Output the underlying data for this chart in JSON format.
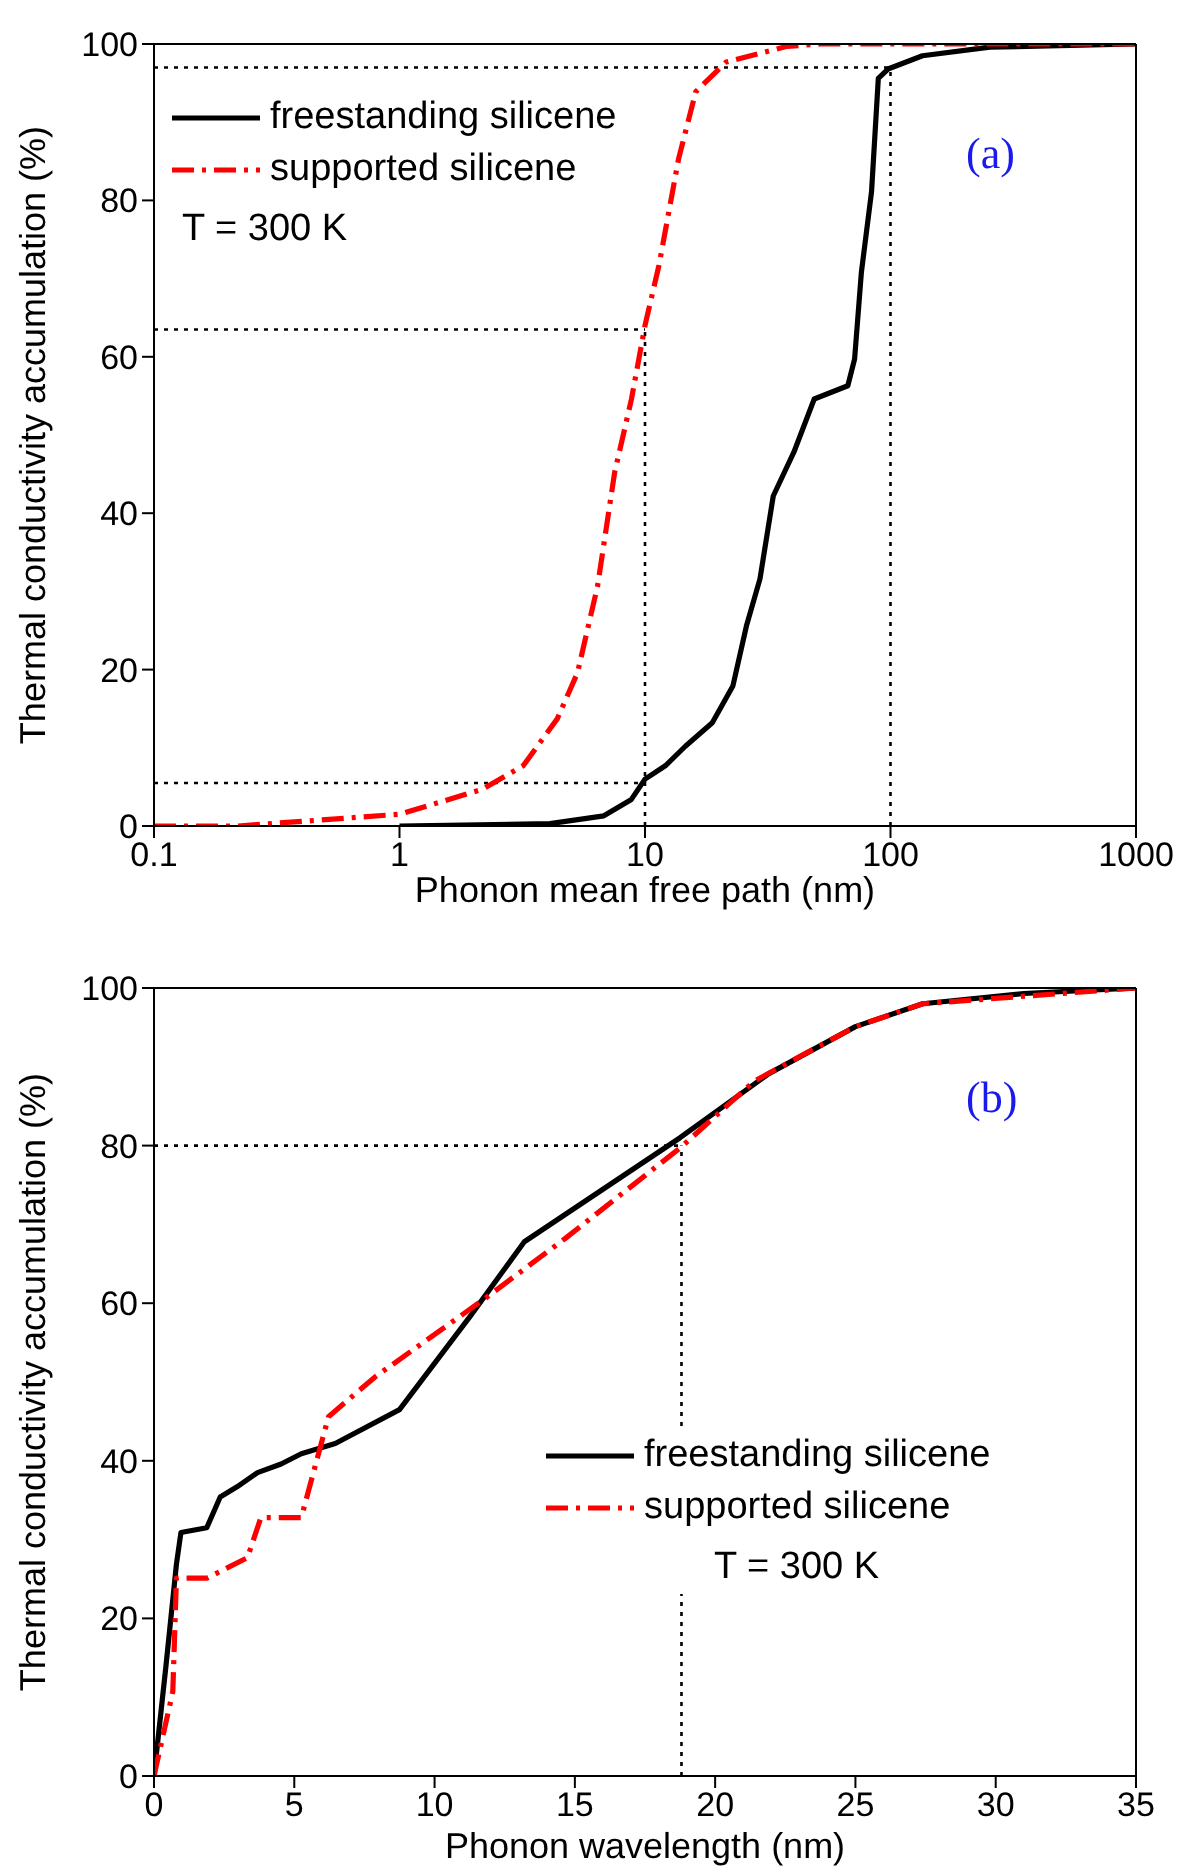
{
  "chart_data": [
    {
      "type": "line",
      "xlabel": "Phonon mean free path (nm)",
      "ylabel": "Thermal conductivity accumulation (%)",
      "log": "x",
      "xlim": [
        0.1,
        1000
      ],
      "xticks": [
        0.1,
        1,
        10,
        100,
        1000
      ],
      "ylim": [
        0,
        100
      ],
      "yticks": [
        0,
        20,
        40,
        60,
        80,
        100
      ],
      "legend": "top left",
      "marker": "none",
      "annotations": [
        "T = 300 K",
        "(a)"
      ],
      "ref_lines": [
        {
          "axis": "y",
          "value": 97,
          "line_style": "dotted",
          "color": "#000000"
        },
        {
          "axis": "y",
          "value": 63.5,
          "line_style": "dotted",
          "color": "#000000"
        },
        {
          "axis": "y",
          "value": 5.5,
          "line_style": "dotted",
          "color": "#000000"
        },
        {
          "axis": "x",
          "value": 10,
          "line_style": "dotted",
          "color": "#000000"
        },
        {
          "axis": "x",
          "value": 100,
          "line_style": "dotted",
          "color": "#000000"
        }
      ],
      "series": [
        {
          "name": "freestanding silicene",
          "color": "#000000",
          "line_style": "solid",
          "x": [
            1,
            4.1,
            6.8,
            8.8,
            10,
            12.1,
            14.6,
            18.8,
            22.8,
            25.9,
            29.4,
            33.3,
            40.4,
            48.9,
            67,
            71.4,
            76.1,
            83.7,
            89.2,
            97.7,
            135,
            254,
            1000
          ],
          "values": [
            0,
            0.3,
            1.3,
            3.4,
            6,
            7.7,
            10.2,
            13.2,
            17.9,
            25.6,
            31.6,
            42.2,
            47.8,
            54.6,
            56.3,
            59.7,
            70.8,
            81.1,
            95.6,
            96.8,
            98.5,
            99.6,
            100
          ]
        },
        {
          "name": "supported silicene",
          "color": "#ff0000",
          "line_style": "dashed",
          "x": [
            0.1,
            0.22,
            1,
            2.18,
            3.19,
            4.39,
            5.31,
            6.41,
            7.52,
            8.81,
            10,
            11.4,
            13.7,
            16.1,
            21.4,
            37.9,
            52,
            1000
          ],
          "values": [
            0,
            0,
            1.5,
            4.7,
            7.7,
            13.7,
            19.6,
            30.7,
            45.2,
            54.6,
            64,
            71.7,
            85.3,
            93.9,
            97.7,
            99.7,
            100,
            100
          ]
        }
      ]
    },
    {
      "type": "line",
      "xlabel": "Phonon wavelength (nm)",
      "ylabel": "Thermal conductivity accumulation (%)",
      "xlim": [
        0,
        35
      ],
      "xticks": [
        0,
        5,
        10,
        15,
        20,
        25,
        30,
        35
      ],
      "ylim": [
        0,
        100
      ],
      "yticks": [
        0,
        20,
        40,
        60,
        80,
        100
      ],
      "legend": "bottom right",
      "marker": "none",
      "annotations": [
        "T = 300 K",
        "(b)"
      ],
      "ref_lines": [
        {
          "axis": "y",
          "value": 80,
          "line_style": "dotted",
          "color": "#000000"
        },
        {
          "axis": "x",
          "value": 18.8,
          "line_style": "dotted",
          "color": "#000000"
        }
      ],
      "series": [
        {
          "name": "freestanding silicene",
          "color": "#000000",
          "line_style": "solid",
          "x": [
            0,
            0.43,
            0.8,
            0.96,
            1.88,
            2.36,
            2.96,
            3.69,
            4.53,
            5.25,
            6.46,
            8.75,
            11.28,
            13.2,
            18.75,
            21.9,
            25,
            27.4,
            31,
            35
          ],
          "values": [
            0,
            14.1,
            26.9,
            30.9,
            31.5,
            35.4,
            36.7,
            38.5,
            39.6,
            40.9,
            42.2,
            46.5,
            58.4,
            67.8,
            81,
            89.1,
            95.1,
            98,
            99.3,
            100
          ]
        },
        {
          "name": "supported silicene",
          "color": "#ff0000",
          "line_style": "dashed",
          "x": [
            0,
            0.67,
            0.8,
            1.88,
            3.33,
            3.81,
            5.25,
            6.22,
            7.9,
            11.76,
            14.65,
            18.75,
            21.4,
            25,
            27.4,
            35
          ],
          "values": [
            0,
            10.7,
            25.1,
            25.1,
            27.7,
            32.8,
            32.8,
            45.6,
            50.7,
            60.5,
            68.2,
            79.7,
            88.2,
            95.1,
            98,
            100
          ]
        }
      ]
    }
  ]
}
